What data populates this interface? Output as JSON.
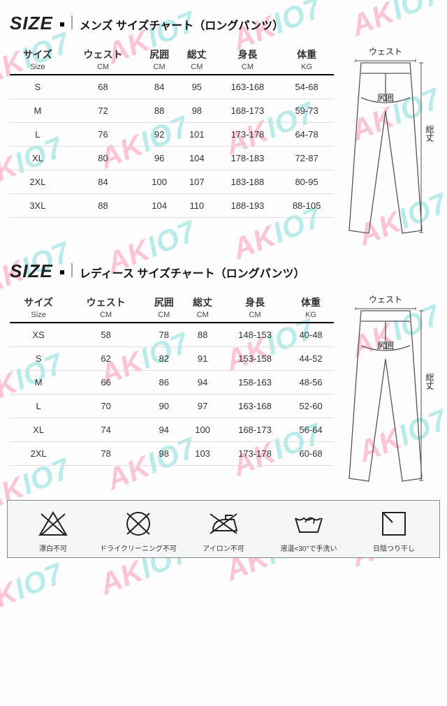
{
  "watermark": {
    "text_a": "AK",
    "text_b": "IO7"
  },
  "header": {
    "size_word": "SIZE",
    "mens_title": "メンズ サイズチャート（ロングパンツ）",
    "ladies_title": "レディース サイズチャート（ロングパンツ）"
  },
  "columns": [
    {
      "jp": "サイズ",
      "en": "Size"
    },
    {
      "jp": "ウェスト",
      "en": "CM"
    },
    {
      "jp": "尻囲",
      "en": "CM"
    },
    {
      "jp": "総丈",
      "en": "CM"
    },
    {
      "jp": "身長",
      "en": "CM"
    },
    {
      "jp": "体重",
      "en": "KG"
    }
  ],
  "mens": {
    "rows": [
      [
        "S",
        "68",
        "84",
        "95",
        "163-168",
        "54-68"
      ],
      [
        "M",
        "72",
        "88",
        "98",
        "168-173",
        "59-73"
      ],
      [
        "L",
        "76",
        "92",
        "101",
        "173-178",
        "64-78"
      ],
      [
        "XL",
        "80",
        "96",
        "104",
        "178-183",
        "72-87"
      ],
      [
        "2XL",
        "84",
        "100",
        "107",
        "183-188",
        "80-95"
      ],
      [
        "3XL",
        "88",
        "104",
        "110",
        "188-193",
        "88-105"
      ]
    ]
  },
  "ladies": {
    "rows": [
      [
        "XS",
        "58",
        "78",
        "88",
        "148-153",
        "40-48"
      ],
      [
        "S",
        "62",
        "82",
        "91",
        "153-158",
        "44-52"
      ],
      [
        "M",
        "66",
        "86",
        "94",
        "158-163",
        "48-56"
      ],
      [
        "L",
        "70",
        "90",
        "97",
        "163-168",
        "52-60"
      ],
      [
        "XL",
        "74",
        "94",
        "100",
        "168-173",
        "56-64"
      ],
      [
        "2XL",
        "78",
        "98",
        "103",
        "173-178",
        "60-68"
      ]
    ]
  },
  "diagram": {
    "waist": "ウェスト",
    "hip": "尻囲",
    "length": "総丈"
  },
  "care": [
    {
      "label": "漂白不可"
    },
    {
      "label": "ドライクリーニング不可"
    },
    {
      "label": "アイロン不可"
    },
    {
      "label": "液温<30°で手洗い"
    },
    {
      "label": "日陰つり干し"
    }
  ],
  "style": {
    "watermark_color_a": "#ff4d8a",
    "watermark_color_b": "#27c7c0",
    "border_color": "#000000",
    "row_border": "#dddddd",
    "background": "#fdfdfd",
    "care_bg": "#f4f6f7"
  }
}
